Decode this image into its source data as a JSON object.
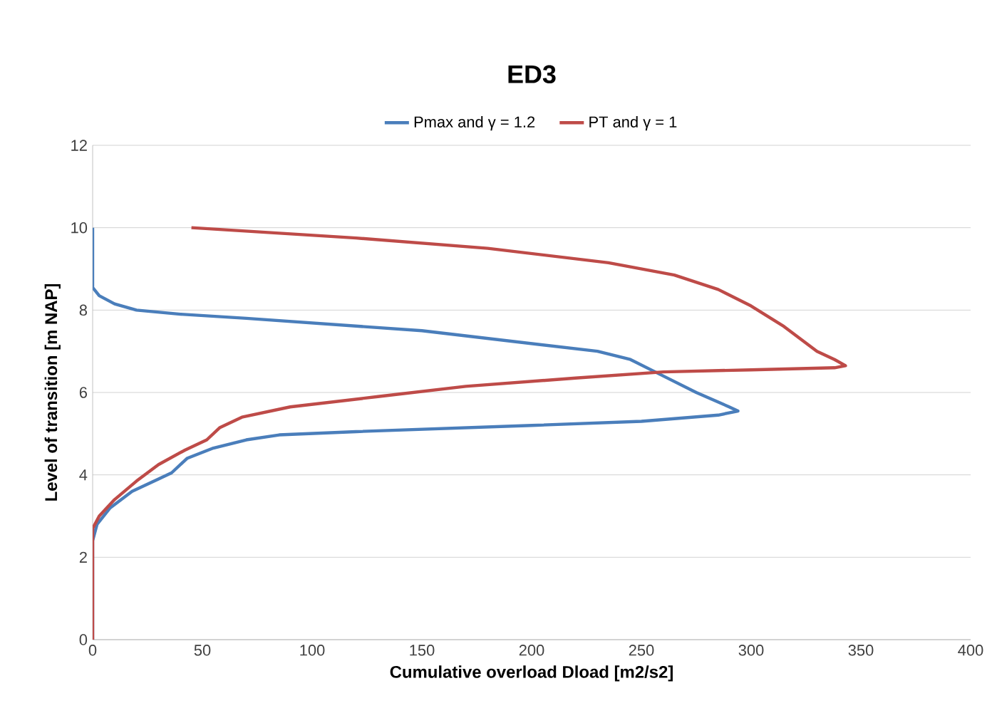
{
  "chart_data": {
    "type": "line",
    "title": "ED3",
    "xlabel": "Cumulative overload Dload [m2/s2]",
    "ylabel": "Level of transition [m NAP]",
    "xlim": [
      0,
      400
    ],
    "xticks": [
      0,
      50,
      100,
      150,
      200,
      250,
      300,
      350,
      400
    ],
    "ylim": [
      0,
      12
    ],
    "yticks": [
      0,
      2,
      4,
      6,
      8,
      10,
      12
    ],
    "grid": "y",
    "legend": "top",
    "marker": "none",
    "line_style": "solid",
    "series": [
      {
        "name": "Pmax and γ = 1.2",
        "color": "#4a7ebb",
        "x": [
          0,
          0,
          2,
          8,
          18,
          30,
          36,
          43,
          55,
          70,
          85,
          120,
          200,
          250,
          285,
          294,
          290,
          275,
          260,
          245,
          230,
          150,
          70,
          40,
          20,
          10,
          3,
          0,
          0
        ],
        "values": [
          0,
          2.4,
          2.8,
          3.2,
          3.6,
          3.9,
          4.05,
          4.4,
          4.65,
          4.85,
          4.97,
          5.05,
          5.2,
          5.3,
          5.45,
          5.55,
          5.65,
          6.0,
          6.4,
          6.8,
          7.0,
          7.5,
          7.8,
          7.9,
          8.0,
          8.15,
          8.35,
          8.55,
          10
        ]
      },
      {
        "name": "PT and γ = 1",
        "color": "#be4b48",
        "x": [
          0,
          0,
          3,
          10,
          20,
          30,
          42,
          52,
          58,
          68,
          90,
          130,
          170,
          220,
          260,
          300,
          338,
          343,
          338,
          330,
          315,
          300,
          285,
          265,
          235,
          180,
          120,
          45
        ],
        "values": [
          0,
          2.7,
          3.0,
          3.4,
          3.85,
          4.25,
          4.6,
          4.85,
          5.15,
          5.4,
          5.65,
          5.9,
          6.15,
          6.35,
          6.5,
          6.55,
          6.6,
          6.65,
          6.8,
          7.0,
          7.6,
          8.1,
          8.5,
          8.85,
          9.15,
          9.5,
          9.75,
          10.0
        ]
      }
    ]
  }
}
